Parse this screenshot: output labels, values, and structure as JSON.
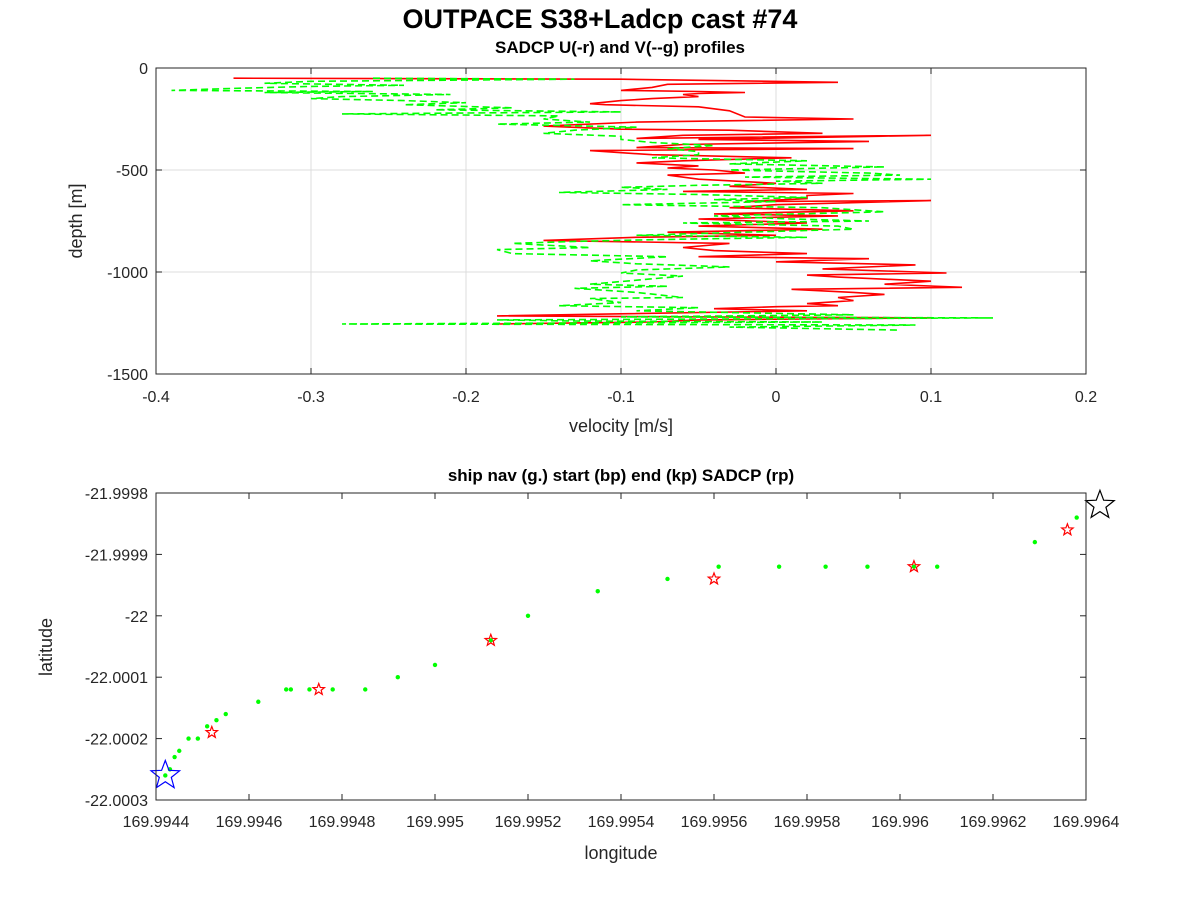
{
  "figure": {
    "title": "OUTPACE S38+Ladcp cast #74"
  },
  "chart_data": [
    {
      "type": "line",
      "title": "SADCP U(-r) and V(--g) profiles",
      "xlabel": "velocity [m/s]",
      "ylabel": "depth [m]",
      "xlim": [
        -0.4,
        0.2
      ],
      "ylim": [
        -1500,
        0
      ],
      "x_ticks": [
        -0.4,
        -0.3,
        -0.2,
        -0.1,
        0,
        0.1,
        0.2
      ],
      "x_tick_labels": [
        "-0.4",
        "-0.3",
        "-0.2",
        "-0.1",
        "0",
        "0.1",
        "0.2"
      ],
      "y_ticks": [
        0,
        -500,
        -1000,
        -1500
      ],
      "y_tick_labels": [
        "0",
        "-500",
        "-1000",
        "-1500"
      ],
      "grid": true,
      "series": [
        {
          "color": "#ff0000",
          "style": "solid",
          "points": [
            [
              -0.35,
              -50
            ],
            [
              -0.1,
              -55
            ],
            [
              0.04,
              -70
            ],
            [
              -0.07,
              -80
            ],
            [
              -0.08,
              -95
            ],
            [
              -0.1,
              -110
            ],
            [
              -0.05,
              -115
            ],
            [
              -0.02,
              -120
            ],
            [
              -0.05,
              -125
            ],
            [
              -0.06,
              -130
            ],
            [
              -0.05,
              -140
            ],
            [
              -0.08,
              -150
            ],
            [
              -0.1,
              -160
            ],
            [
              -0.12,
              -175
            ],
            [
              -0.11,
              -180
            ],
            [
              -0.05,
              -190
            ],
            [
              -0.03,
              -210
            ],
            [
              -0.02,
              -240
            ],
            [
              0.05,
              -250
            ],
            [
              -0.09,
              -265
            ],
            [
              -0.15,
              -285
            ],
            [
              -0.1,
              -300
            ],
            [
              -0.03,
              -305
            ],
            [
              0.03,
              -320
            ],
            [
              -0.06,
              -330
            ],
            [
              -0.09,
              -345
            ],
            [
              0.1,
              -330
            ],
            [
              -0.05,
              -350
            ],
            [
              0.06,
              -360
            ],
            [
              -0.06,
              -375
            ],
            [
              -0.09,
              -390
            ],
            [
              0.05,
              -395
            ],
            [
              -0.12,
              -405
            ],
            [
              -0.08,
              -425
            ],
            [
              -0.05,
              -430
            ],
            [
              0.01,
              -440
            ],
            [
              -0.06,
              -455
            ],
            [
              -0.09,
              -465
            ],
            [
              -0.05,
              -480
            ],
            [
              -0.07,
              -490
            ],
            [
              -0.04,
              -500
            ],
            [
              -0.02,
              -515
            ],
            [
              -0.07,
              -525
            ],
            [
              -0.05,
              -545
            ],
            [
              0.0,
              -565
            ],
            [
              -0.03,
              -580
            ],
            [
              0.02,
              -595
            ],
            [
              -0.06,
              -605
            ],
            [
              0.05,
              -615
            ],
            [
              0.02,
              -625
            ],
            [
              0.02,
              -640
            ],
            [
              -0.02,
              -655
            ],
            [
              0.1,
              -650
            ],
            [
              0.0,
              -670
            ],
            [
              -0.03,
              -685
            ],
            [
              0.05,
              -700
            ],
            [
              -0.04,
              -715
            ],
            [
              0.04,
              -725
            ],
            [
              -0.05,
              -740
            ],
            [
              0.02,
              -760
            ],
            [
              -0.05,
              -775
            ],
            [
              0.03,
              -790
            ],
            [
              -0.07,
              -805
            ],
            [
              0.0,
              -820
            ],
            [
              -0.09,
              -830
            ],
            [
              -0.15,
              -845
            ],
            [
              -0.03,
              -860
            ],
            [
              -0.06,
              -880
            ],
            [
              -0.04,
              -895
            ],
            [
              0.02,
              -910
            ],
            [
              -0.05,
              -925
            ],
            [
              0.06,
              -935
            ],
            [
              0.0,
              -950
            ],
            [
              0.09,
              -965
            ],
            [
              0.03,
              -985
            ],
            [
              0.11,
              -1005
            ],
            [
              0.02,
              -1015
            ],
            [
              0.04,
              -1025
            ],
            [
              0.1,
              -1045
            ],
            [
              0.07,
              -1060
            ],
            [
              0.12,
              -1075
            ],
            [
              0.01,
              -1085
            ],
            [
              0.05,
              -1100
            ],
            [
              0.07,
              -1110
            ],
            [
              0.04,
              -1125
            ],
            [
              0.05,
              -1140
            ],
            [
              0.02,
              -1155
            ],
            [
              0.04,
              -1165
            ],
            [
              0.0,
              -1170
            ],
            [
              -0.04,
              -1180
            ],
            [
              0.02,
              -1190
            ],
            [
              -0.1,
              -1205
            ],
            [
              -0.18,
              -1215
            ],
            [
              0.1,
              -1225
            ],
            [
              -0.05,
              -1235
            ],
            [
              -0.08,
              -1245
            ],
            [
              -0.18,
              -1255
            ]
          ]
        },
        {
          "color": "#00ff00",
          "style": "dashed",
          "points": [
            [
              -0.26,
              -50
            ],
            [
              -0.13,
              -55
            ],
            [
              -0.3,
              -65
            ],
            [
              -0.33,
              -75
            ],
            [
              -0.24,
              -85
            ],
            [
              -0.3,
              -90
            ],
            [
              -0.35,
              -100
            ],
            [
              -0.39,
              -110
            ],
            [
              -0.26,
              -115
            ],
            [
              -0.33,
              -120
            ],
            [
              -0.21,
              -130
            ],
            [
              -0.28,
              -140
            ],
            [
              -0.3,
              -150
            ],
            [
              -0.24,
              -160
            ],
            [
              -0.2,
              -170
            ],
            [
              -0.24,
              -180
            ],
            [
              -0.17,
              -195
            ],
            [
              -0.22,
              -205
            ],
            [
              -0.1,
              -215
            ],
            [
              -0.28,
              -225
            ],
            [
              -0.14,
              -235
            ],
            [
              -0.15,
              -250
            ],
            [
              -0.12,
              -265
            ],
            [
              -0.18,
              -275
            ],
            [
              -0.09,
              -290
            ],
            [
              -0.13,
              -305
            ],
            [
              -0.15,
              -320
            ],
            [
              -0.1,
              -335
            ],
            [
              -0.1,
              -350
            ],
            [
              -0.08,
              -365
            ],
            [
              -0.04,
              -380
            ],
            [
              -0.07,
              -395
            ],
            [
              -0.05,
              -410
            ],
            [
              -0.05,
              -425
            ],
            [
              -0.08,
              -440
            ],
            [
              0.02,
              -455
            ],
            [
              -0.03,
              -470
            ],
            [
              0.07,
              -485
            ],
            [
              -0.03,
              -500
            ],
            [
              0.06,
              -515
            ],
            [
              0.08,
              -525
            ],
            [
              -0.02,
              -535
            ],
            [
              0.1,
              -545
            ],
            [
              0.0,
              -555
            ],
            [
              0.03,
              -565
            ],
            [
              -0.05,
              -575
            ],
            [
              -0.1,
              -585
            ],
            [
              -0.07,
              -595
            ],
            [
              -0.14,
              -610
            ],
            [
              -0.05,
              -620
            ],
            [
              0.02,
              -635
            ],
            [
              -0.04,
              -645
            ],
            [
              0.0,
              -655
            ],
            [
              -0.1,
              -670
            ],
            [
              0.03,
              -685
            ],
            [
              0.05,
              -695
            ],
            [
              0.07,
              -705
            ],
            [
              -0.04,
              -725
            ],
            [
              0.01,
              -740
            ],
            [
              0.06,
              -750
            ],
            [
              -0.06,
              -760
            ],
            [
              0.04,
              -775
            ],
            [
              0.05,
              -790
            ],
            [
              -0.02,
              -805
            ],
            [
              -0.09,
              -820
            ],
            [
              0.02,
              -830
            ],
            [
              -0.07,
              -840
            ],
            [
              -0.13,
              -850
            ],
            [
              -0.17,
              -860
            ],
            [
              -0.12,
              -880
            ],
            [
              -0.18,
              -890
            ],
            [
              -0.17,
              -910
            ],
            [
              -0.07,
              -925
            ],
            [
              -0.12,
              -945
            ],
            [
              -0.09,
              -960
            ],
            [
              -0.03,
              -975
            ],
            [
              -0.09,
              -990
            ],
            [
              -0.1,
              -1005
            ],
            [
              -0.06,
              -1020
            ],
            [
              -0.09,
              -1040
            ],
            [
              -0.12,
              -1060
            ],
            [
              -0.07,
              -1070
            ],
            [
              -0.13,
              -1080
            ],
            [
              -0.09,
              -1100
            ],
            [
              -0.06,
              -1125
            ],
            [
              -0.12,
              -1130
            ],
            [
              -0.1,
              -1150
            ],
            [
              -0.14,
              -1165
            ],
            [
              -0.05,
              -1175
            ],
            [
              -0.09,
              -1190
            ],
            [
              -0.02,
              -1200
            ],
            [
              0.05,
              -1210
            ],
            [
              -0.1,
              -1220
            ],
            [
              0.14,
              -1225
            ],
            [
              -0.18,
              -1235
            ],
            [
              -0.13,
              -1240
            ],
            [
              0.03,
              -1245
            ],
            [
              -0.28,
              -1255
            ],
            [
              0.09,
              -1260
            ],
            [
              -0.03,
              -1270
            ],
            [
              0.08,
              -1285
            ]
          ]
        }
      ]
    },
    {
      "type": "scatter",
      "title": "ship nav (g.) start (bp) end (kp) SADCP (rp)",
      "xlabel": "longitude",
      "ylabel": "latitude",
      "xlim": [
        169.9944,
        169.9964
      ],
      "ylim": [
        -22.0003,
        -21.9998
      ],
      "x_ticks": [
        169.9944,
        169.9946,
        169.9948,
        169.995,
        169.9952,
        169.9954,
        169.9956,
        169.9958,
        169.996,
        169.9962,
        169.9964
      ],
      "x_tick_labels": [
        "169.9944",
        "169.9946",
        "169.9948",
        "169.995",
        "169.9952",
        "169.9954",
        "169.9956",
        "169.9958",
        "169.996",
        "169.9962",
        "169.9964"
      ],
      "y_ticks": [
        -21.9998,
        -21.9999,
        -22.0,
        -22.0001,
        -22.0002,
        -22.0003
      ],
      "y_tick_labels": [
        "-21.9998",
        "-21.9999",
        "-22",
        "-22.0001",
        "-22.0002",
        "-22.0003"
      ],
      "grid": false,
      "ship_nav": {
        "color": "#00ff00",
        "points": [
          [
            169.99442,
            -22.00026
          ],
          [
            169.99443,
            -22.00025
          ],
          [
            169.99444,
            -22.00023
          ],
          [
            169.99445,
            -22.00022
          ],
          [
            169.99447,
            -22.0002
          ],
          [
            169.99449,
            -22.0002
          ],
          [
            169.99451,
            -22.00018
          ],
          [
            169.99453,
            -22.00017
          ],
          [
            169.99455,
            -22.00016
          ],
          [
            169.99462,
            -22.00014
          ],
          [
            169.99468,
            -22.00012
          ],
          [
            169.99469,
            -22.00012
          ],
          [
            169.99473,
            -22.00012
          ],
          [
            169.99478,
            -22.00012
          ],
          [
            169.99485,
            -22.00012
          ],
          [
            169.99492,
            -22.0001
          ],
          [
            169.995,
            -22.00008
          ],
          [
            169.99512,
            -22.00004
          ],
          [
            169.9952,
            -22.0
          ],
          [
            169.99535,
            -21.99996
          ],
          [
            169.9955,
            -21.99994
          ],
          [
            169.99561,
            -21.99992
          ],
          [
            169.99574,
            -21.99992
          ],
          [
            169.99584,
            -21.99992
          ],
          [
            169.99593,
            -21.99992
          ],
          [
            169.99603,
            -21.99992
          ],
          [
            169.99608,
            -21.99992
          ],
          [
            169.99629,
            -21.99988
          ],
          [
            169.99638,
            -21.99984
          ]
        ]
      },
      "sadcp": {
        "color": "#ff0000",
        "marker": "star",
        "points": [
          [
            169.99452,
            -22.00019
          ],
          [
            169.99475,
            -22.00012
          ],
          [
            169.99512,
            -22.00004
          ],
          [
            169.9956,
            -21.99994
          ],
          [
            169.99603,
            -21.99992
          ],
          [
            169.99636,
            -21.99986
          ]
        ]
      },
      "start": {
        "color": "#0000ff",
        "marker": "star",
        "point": [
          169.99442,
          -22.00026
        ]
      },
      "end": {
        "color": "#000000",
        "marker": "star",
        "point": [
          169.99643,
          -21.99982
        ]
      }
    }
  ]
}
